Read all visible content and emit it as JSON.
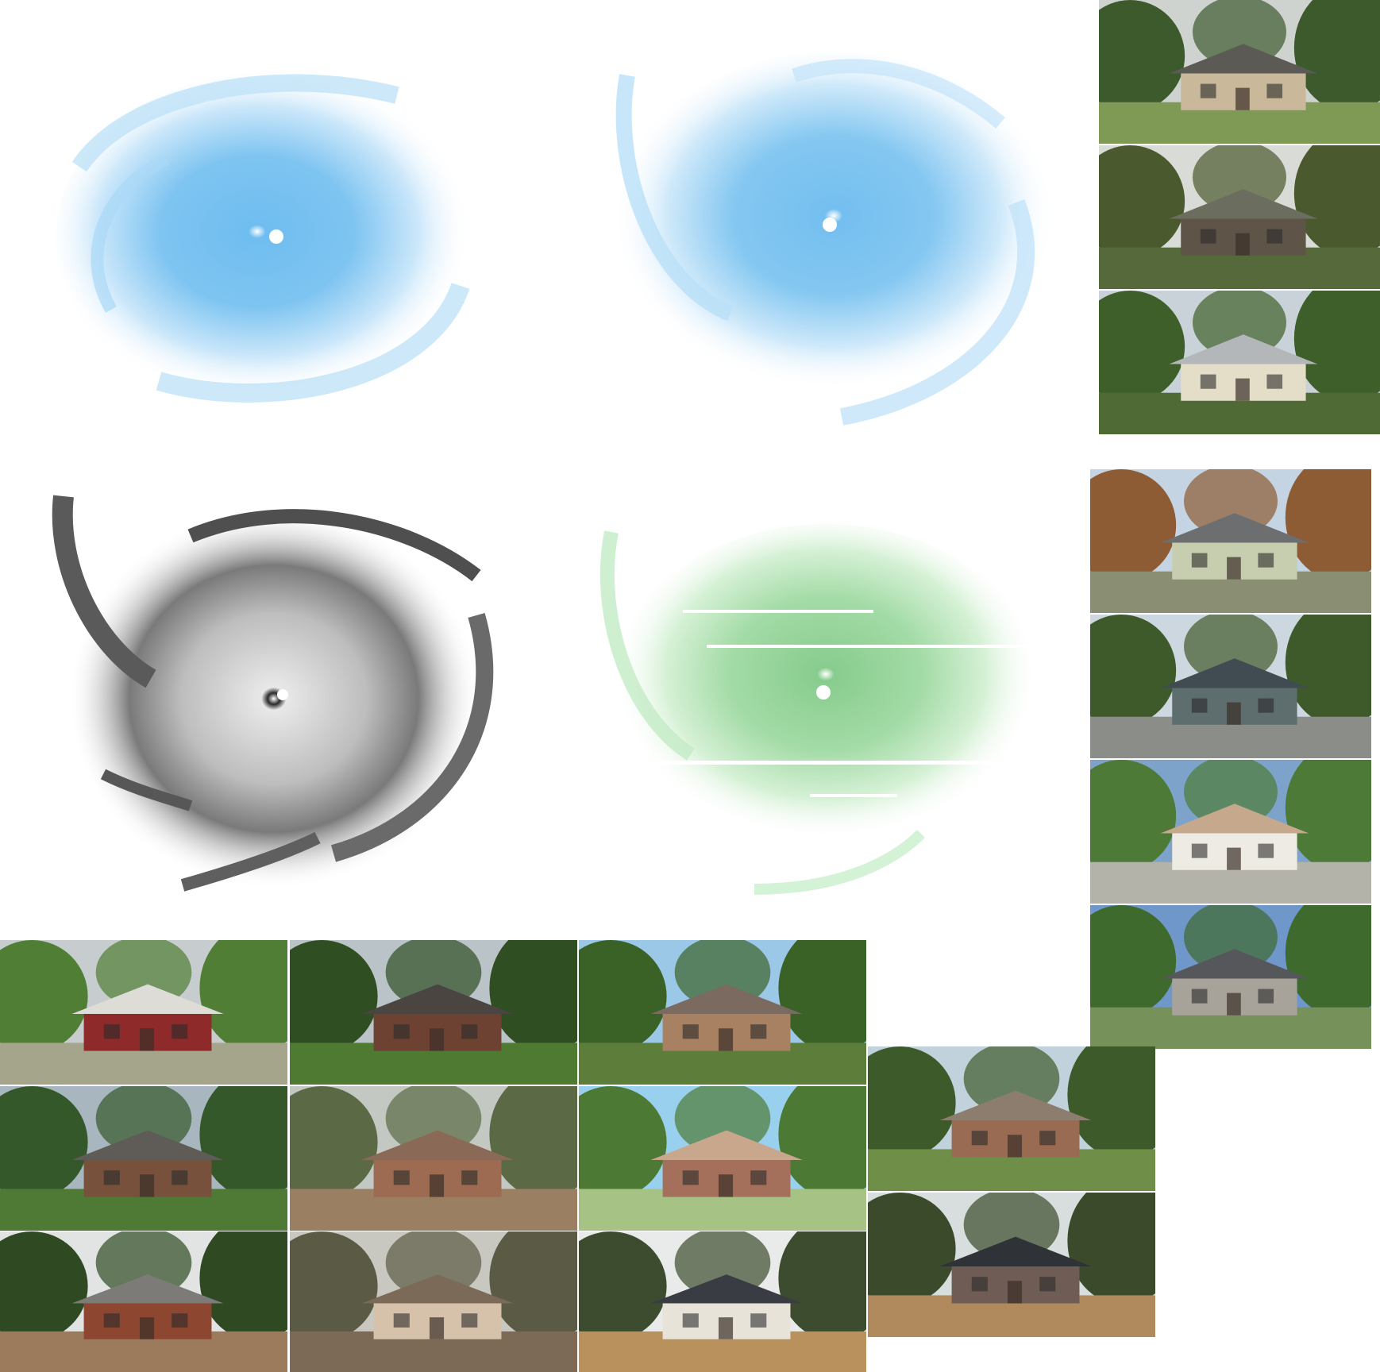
{
  "storm_panels": [
    {
      "name": "storm-blue-1",
      "tint": "#5fb4ee",
      "eye": "#ffffff"
    },
    {
      "name": "storm-blue-2",
      "tint": "#6ab9ef",
      "eye": "#ffffff"
    },
    {
      "name": "storm-grayscale",
      "tint": "#6e6e6e",
      "eye": "#ffffff"
    },
    {
      "name": "storm-green",
      "tint": "#7fd18a",
      "eye": "#ffffff"
    }
  ],
  "house_photos": [
    {
      "name": "house-photo",
      "sky": "#cfd3cf",
      "house": "#c9b99a",
      "roof": "#5c5a55",
      "ground": "#7f9a55",
      "trees": "#3d5a2d"
    },
    {
      "name": "house-photo",
      "sky": "#d9dbd6",
      "house": "#5f5448",
      "roof": "#6b6d5f",
      "ground": "#56693a",
      "trees": "#4a5a2e"
    },
    {
      "name": "house-photo",
      "sky": "#c9d2d8",
      "house": "#e4ddc8",
      "roof": "#b4b7b9",
      "ground": "#4f6a34",
      "trees": "#3f5f2a"
    },
    {
      "name": "house-photo",
      "sky": "#c4d4e2",
      "house": "#c7ceb0",
      "roof": "#6c6e70",
      "ground": "#8a8f73",
      "trees": "#8d5b34"
    },
    {
      "name": "house-photo",
      "sky": "#cdd7e0",
      "house": "#5e6d6e",
      "roof": "#414b52",
      "ground": "#8a8d88",
      "trees": "#3e5a2a"
    },
    {
      "name": "house-photo",
      "sky": "#7ea3cb",
      "house": "#eeeae4",
      "roof": "#c6a88d",
      "ground": "#b4b3a9",
      "trees": "#4d7a36"
    },
    {
      "name": "house-photo",
      "sky": "#6f97c9",
      "house": "#a7a39a",
      "roof": "#56575a",
      "ground": "#77915a",
      "trees": "#3f6a2e"
    },
    {
      "name": "house-photo",
      "sky": "#c7ccce",
      "house": "#8e2a2a",
      "roof": "#dedcd7",
      "ground": "#a4a58a",
      "trees": "#4f7e34"
    },
    {
      "name": "house-photo",
      "sky": "#b9c3c8",
      "house": "#6e4233",
      "roof": "#4a4540",
      "ground": "#4f7a32",
      "trees": "#2f4e22"
    },
    {
      "name": "house-photo",
      "sky": "#9cc8e8",
      "house": "#a88062",
      "roof": "#7a6a5f",
      "ground": "#5d7e3a",
      "trees": "#3a6226"
    },
    {
      "name": "house-photo",
      "sky": "#a7b6bf",
      "house": "#77513c",
      "roof": "#5f5c58",
      "ground": "#4f7a36",
      "trees": "#35582a"
    },
    {
      "name": "house-photo",
      "sky": "#c3c8c2",
      "house": "#9c6b52",
      "roof": "#8a6a56",
      "ground": "#9a7f62",
      "trees": "#5b6a45"
    },
    {
      "name": "house-photo",
      "sky": "#99d0ee",
      "house": "#a5705b",
      "roof": "#c9a78d",
      "ground": "#a6c285",
      "trees": "#4c7a35"
    },
    {
      "name": "house-photo",
      "sky": "#e2e4e3",
      "house": "#8d4630",
      "roof": "#7d7b78",
      "ground": "#9b7b5c",
      "trees": "#2f4a22"
    },
    {
      "name": "house-photo",
      "sky": "#c8c8c1",
      "house": "#d6c2ab",
      "roof": "#7b6a58",
      "ground": "#7c6a56",
      "trees": "#5b5a44"
    },
    {
      "name": "house-photo",
      "sky": "#e8ebea",
      "house": "#e7e3d9",
      "roof": "#3a3c44",
      "ground": "#b9915d",
      "trees": "#3d4b2e"
    },
    {
      "name": "house-photo",
      "sky": "#c2d2dd",
      "house": "#9a6b53",
      "roof": "#8d7d6e",
      "ground": "#6f8f48",
      "trees": "#3d5a2a"
    },
    {
      "name": "house-photo",
      "sky": "#d8dedd",
      "house": "#6e5c55",
      "roof": "#2f3236",
      "ground": "#b08a5c",
      "trees": "#3a4a2a"
    }
  ]
}
